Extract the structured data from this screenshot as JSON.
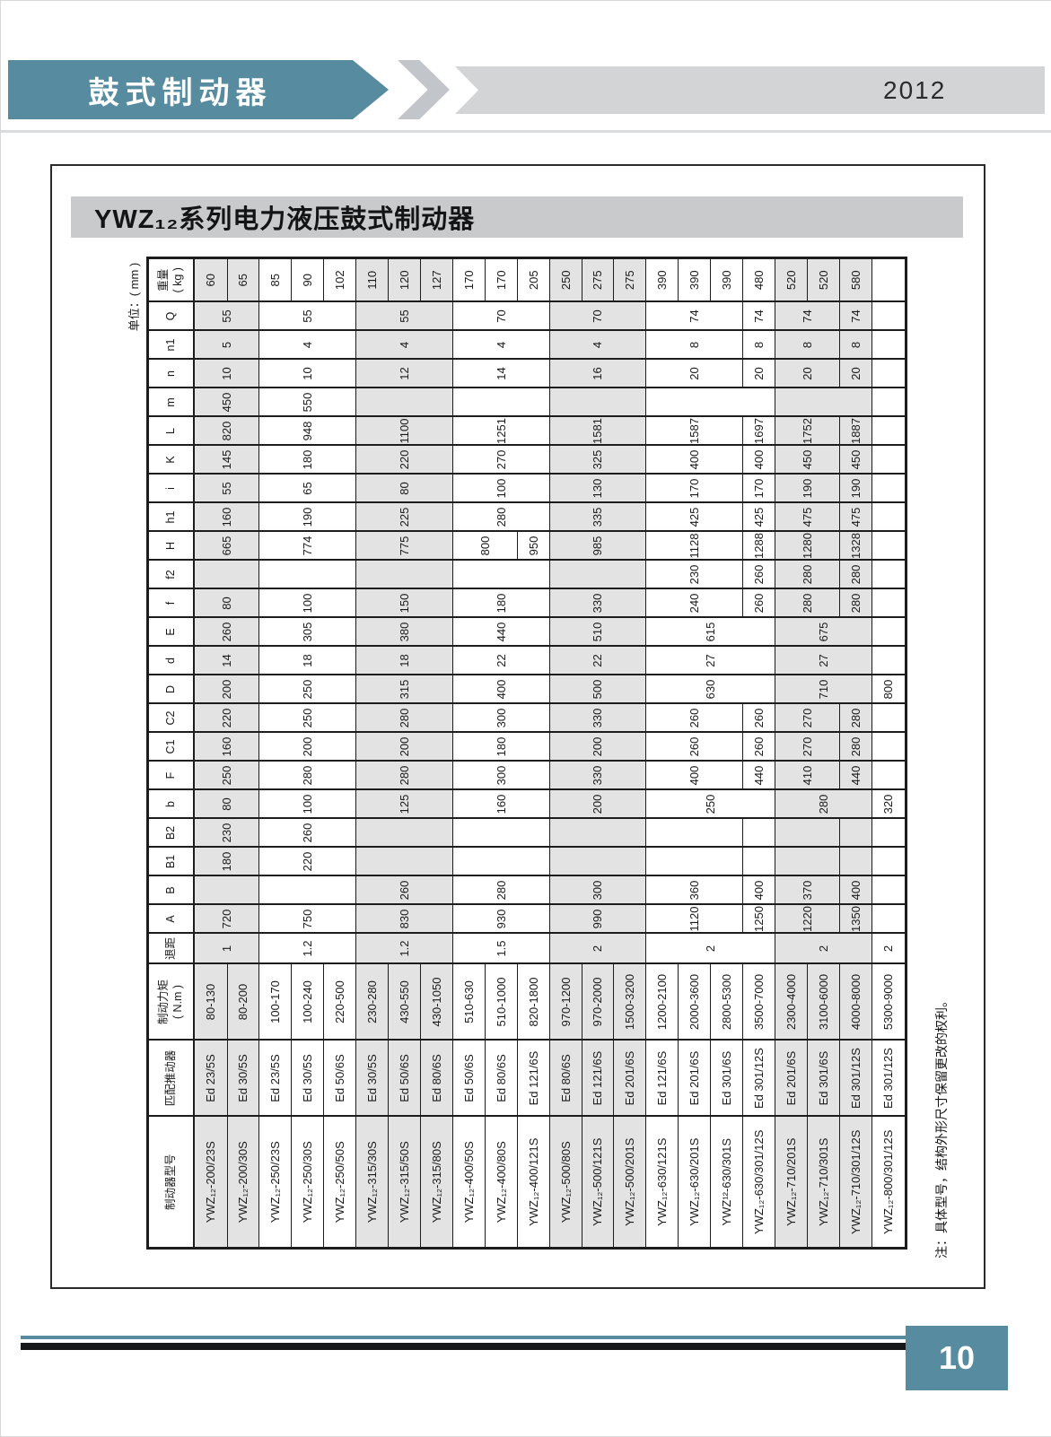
{
  "banner": {
    "title": "鼓式制动器",
    "year": "2012"
  },
  "section": {
    "title": "YWZ₁₂系列电力液压鼓式制动器"
  },
  "table": {
    "unit_label": "单位：( mm )",
    "note": "注：具体型号，结构外形尺寸保留更改的权利。",
    "headers": [
      "制动器型号",
      "匹配推动器",
      "制动力矩\n( N.m )",
      "退距",
      "A",
      "B",
      "B1",
      "B2",
      "b",
      "F",
      "C1",
      "C2",
      "D",
      "d",
      "E",
      "f",
      "f2",
      "H",
      "h1",
      "i",
      "K",
      "L",
      "m",
      "n",
      "n1",
      "Q",
      "重量\n( kg )"
    ],
    "row_groups": [
      0,
      0,
      1,
      1,
      1,
      2,
      2,
      2,
      3,
      3,
      3,
      4,
      4,
      4,
      5,
      5,
      5,
      5,
      6,
      6,
      6,
      7
    ],
    "rows": [
      [
        "YWZ₁₂-200/23S",
        "Ed 23/5S",
        "80-130",
        [
          "1",
          2
        ],
        [
          "720",
          2
        ],
        [
          "",
          2
        ],
        [
          "180",
          2
        ],
        [
          "230",
          2
        ],
        [
          "80",
          2
        ],
        [
          "250",
          2
        ],
        [
          "160",
          2
        ],
        [
          "220",
          2
        ],
        [
          "200",
          2
        ],
        [
          "14",
          2
        ],
        [
          "260",
          2
        ],
        [
          "80",
          2
        ],
        [
          "",
          2
        ],
        [
          "665",
          2
        ],
        [
          "160",
          2
        ],
        [
          "55",
          2
        ],
        [
          "145",
          2
        ],
        [
          "820",
          2
        ],
        [
          "450",
          2
        ],
        [
          "10",
          2
        ],
        [
          "5",
          2
        ],
        [
          "55",
          2
        ],
        "60"
      ],
      [
        "YWZ₁₂-200/30S",
        "Ed 30/5S",
        "80-200",
        0,
        0,
        0,
        0,
        0,
        0,
        0,
        0,
        0,
        0,
        0,
        0,
        0,
        0,
        0,
        0,
        0,
        0,
        0,
        0,
        0,
        0,
        0,
        "65"
      ],
      [
        "YWZ₁₂-250/23S",
        "Ed 23/5S",
        "100-170",
        [
          "1.2",
          3
        ],
        [
          "750",
          3
        ],
        [
          "",
          3
        ],
        [
          "220",
          3
        ],
        [
          "260",
          3
        ],
        [
          "100",
          3
        ],
        [
          "280",
          3
        ],
        [
          "200",
          3
        ],
        [
          "250",
          3
        ],
        [
          "250",
          3
        ],
        [
          "18",
          3
        ],
        [
          "305",
          3
        ],
        [
          "100",
          3
        ],
        [
          "",
          3
        ],
        [
          "774",
          3
        ],
        [
          "190",
          3
        ],
        [
          "65",
          3
        ],
        [
          "180",
          3
        ],
        [
          "948",
          3
        ],
        [
          "550",
          3
        ],
        [
          "10",
          3
        ],
        [
          "4",
          3
        ],
        [
          "55",
          3
        ],
        "85"
      ],
      [
        "YWZ₁₂-250/30S",
        "Ed 30/5S",
        "100-240",
        0,
        0,
        0,
        0,
        0,
        0,
        0,
        0,
        0,
        0,
        0,
        0,
        0,
        0,
        0,
        0,
        0,
        0,
        0,
        0,
        0,
        0,
        0,
        "90"
      ],
      [
        "YWZ₁₂-250/50S",
        "Ed 50/6S",
        "220-500",
        0,
        0,
        0,
        0,
        0,
        0,
        0,
        0,
        0,
        0,
        0,
        0,
        0,
        0,
        0,
        0,
        0,
        0,
        0,
        0,
        0,
        0,
        0,
        "102"
      ],
      [
        "YWZ₁₂-315/30S",
        "Ed 30/5S",
        "230-280",
        [
          "1.2",
          3
        ],
        [
          "830",
          3
        ],
        [
          "260",
          3
        ],
        [
          "",
          3
        ],
        [
          "",
          3
        ],
        [
          "125",
          3
        ],
        [
          "280",
          3
        ],
        [
          "200",
          3
        ],
        [
          "280",
          3
        ],
        [
          "315",
          3
        ],
        [
          "18",
          3
        ],
        [
          "380",
          3
        ],
        [
          "150",
          3
        ],
        [
          "",
          3
        ],
        [
          "775",
          3
        ],
        [
          "225",
          3
        ],
        [
          "80",
          3
        ],
        [
          "220",
          3
        ],
        [
          "1100",
          3
        ],
        [
          "",
          3
        ],
        [
          "12",
          3
        ],
        [
          "4",
          3
        ],
        [
          "55",
          3
        ],
        "110"
      ],
      [
        "YWZ₁₂-315/50S",
        "Ed 50/6S",
        "430-550",
        0,
        0,
        0,
        0,
        0,
        0,
        0,
        0,
        0,
        0,
        0,
        0,
        0,
        0,
        0,
        0,
        0,
        0,
        0,
        0,
        0,
        0,
        0,
        "120"
      ],
      [
        "YWZ₁₂-315/80S",
        "Ed 80/6S",
        "430-1050",
        0,
        0,
        0,
        0,
        0,
        0,
        0,
        0,
        0,
        0,
        0,
        0,
        0,
        0,
        0,
        0,
        0,
        0,
        0,
        0,
        0,
        0,
        0,
        "127"
      ],
      [
        "YWZ₁₂-400/50S",
        "Ed 50/6S",
        "510-630",
        [
          "1.5",
          3
        ],
        [
          "930",
          3
        ],
        [
          "280",
          3
        ],
        [
          "",
          3
        ],
        [
          "",
          3
        ],
        [
          "160",
          3
        ],
        [
          "300",
          3
        ],
        [
          "180",
          3
        ],
        [
          "300",
          3
        ],
        [
          "400",
          3
        ],
        [
          "22",
          3
        ],
        [
          "440",
          3
        ],
        [
          "180",
          3
        ],
        [
          "",
          3
        ],
        [
          "800",
          2
        ],
        [
          "280",
          3
        ],
        [
          "100",
          3
        ],
        [
          "270",
          3
        ],
        [
          "1251",
          3
        ],
        [
          "",
          3
        ],
        [
          "14",
          3
        ],
        [
          "4",
          3
        ],
        [
          "70",
          3
        ],
        "170"
      ],
      [
        "YWZ₁₂-400/80S",
        "Ed 80/6S",
        "510-1000",
        0,
        0,
        0,
        0,
        0,
        0,
        0,
        0,
        0,
        0,
        0,
        0,
        0,
        0,
        0,
        0,
        0,
        0,
        0,
        0,
        0,
        0,
        0,
        "170"
      ],
      [
        "YWZ₁₂-400/121S",
        "Ed 121/6S",
        "820-1800",
        0,
        0,
        0,
        0,
        0,
        0,
        0,
        0,
        0,
        0,
        0,
        0,
        0,
        0,
        "950",
        0,
        0,
        0,
        0,
        0,
        0,
        0,
        0,
        "205"
      ],
      [
        "YWZ₁₂-500/80S",
        "Ed 80/6S",
        "970-1200",
        [
          "2",
          3
        ],
        [
          "990",
          3
        ],
        [
          "300",
          3
        ],
        [
          "",
          3
        ],
        [
          "",
          3
        ],
        [
          "200",
          3
        ],
        [
          "330",
          3
        ],
        [
          "200",
          3
        ],
        [
          "330",
          3
        ],
        [
          "500",
          3
        ],
        [
          "22",
          3
        ],
        [
          "510",
          3
        ],
        [
          "330",
          3
        ],
        [
          "",
          3
        ],
        [
          "985",
          3
        ],
        [
          "335",
          3
        ],
        [
          "130",
          3
        ],
        [
          "325",
          3
        ],
        [
          "1581",
          3
        ],
        [
          "",
          3
        ],
        [
          "16",
          3
        ],
        [
          "4",
          3
        ],
        [
          "70",
          3
        ],
        "250"
      ],
      [
        "YWZ₁₂-500/121S",
        "Ed 121/6S",
        "970-2000",
        0,
        0,
        0,
        0,
        0,
        0,
        0,
        0,
        0,
        0,
        0,
        0,
        0,
        0,
        0,
        0,
        0,
        0,
        0,
        0,
        0,
        0,
        0,
        "275"
      ],
      [
        "YWZ₁₂-500/201S",
        "Ed 201/6S",
        "1500-3200",
        0,
        0,
        0,
        0,
        0,
        0,
        0,
        0,
        0,
        0,
        0,
        0,
        0,
        0,
        0,
        0,
        0,
        0,
        0,
        0,
        0,
        0,
        0,
        "275"
      ],
      [
        "YWZ₁₂-630/121S",
        "Ed 121/6S",
        "1200-2100",
        [
          "2",
          4
        ],
        [
          "1120",
          3
        ],
        [
          "360",
          3
        ],
        [
          "",
          3
        ],
        [
          "",
          3
        ],
        [
          "250",
          4
        ],
        [
          "400",
          3
        ],
        [
          "260",
          3
        ],
        [
          "260",
          3
        ],
        [
          "630",
          4
        ],
        [
          "27",
          4
        ],
        [
          "615",
          4
        ],
        [
          "240",
          3
        ],
        [
          "230",
          3
        ],
        [
          "1128",
          3
        ],
        [
          "425",
          3
        ],
        [
          "170",
          3
        ],
        [
          "400",
          3
        ],
        [
          "1587",
          3
        ],
        [
          "",
          4
        ],
        [
          "20",
          3
        ],
        [
          "8",
          3
        ],
        [
          "74",
          3
        ],
        "390"
      ],
      [
        "YWZ₁₂-630/201S",
        "Ed 201/6S",
        "2000-3600",
        0,
        0,
        0,
        0,
        0,
        0,
        0,
        0,
        0,
        0,
        0,
        0,
        0,
        0,
        0,
        0,
        0,
        0,
        0,
        0,
        0,
        0,
        0,
        "390"
      ],
      [
        "YWZ¹²-630/301S",
        "Ed 301/6S",
        "2800-5300",
        0,
        0,
        0,
        0,
        0,
        0,
        0,
        0,
        0,
        0,
        0,
        0,
        0,
        0,
        0,
        0,
        0,
        0,
        0,
        0,
        0,
        0,
        0,
        "390"
      ],
      [
        "YWZ₁₂-630/301/12S",
        "Ed 301/12S",
        "3500-7000",
        0,
        "1250",
        "400",
        "",
        "",
        0,
        "440",
        "260",
        "260",
        0,
        0,
        0,
        "260",
        "260",
        "1288",
        "425",
        "170",
        "400",
        "1697",
        0,
        "20",
        "8",
        "74",
        "480"
      ],
      [
        "YWZ₁₂-710/201S",
        "Ed 201/6S",
        "2300-4000",
        [
          "2",
          3
        ],
        [
          "1220",
          2
        ],
        [
          "370",
          2
        ],
        [
          "",
          2
        ],
        [
          "",
          2
        ],
        [
          "280",
          3
        ],
        [
          "410",
          2
        ],
        [
          "270",
          2
        ],
        [
          "270",
          2
        ],
        [
          "710",
          3
        ],
        [
          "27",
          3
        ],
        [
          "675",
          3
        ],
        [
          "280",
          2
        ],
        [
          "280",
          2
        ],
        [
          "1280",
          2
        ],
        [
          "475",
          2
        ],
        [
          "190",
          2
        ],
        [
          "450",
          2
        ],
        [
          "1752",
          2
        ],
        [
          "",
          3
        ],
        [
          "20",
          2
        ],
        [
          "8",
          2
        ],
        [
          "74",
          2
        ],
        "520"
      ],
      [
        "YWZ₁₂-710/301S",
        "Ed 301/6S",
        "3100-6000",
        0,
        0,
        0,
        0,
        0,
        0,
        0,
        0,
        0,
        0,
        0,
        0,
        0,
        0,
        0,
        0,
        0,
        0,
        0,
        0,
        0,
        0,
        0,
        "520"
      ],
      [
        "YWZ₁₂-710/301/12S",
        "Ed 301/12S",
        "4000-8000",
        0,
        "1350",
        "400",
        "",
        "",
        0,
        "440",
        "280",
        "280",
        0,
        0,
        0,
        "280",
        "280",
        "1328",
        "475",
        "190",
        "450",
        "1887",
        0,
        "20",
        "8",
        "74",
        "580"
      ],
      [
        "YWZ₁₂-800/301/12S",
        "Ed 301/12S",
        "5300-9000",
        "2",
        "",
        "",
        "",
        "",
        "320",
        "",
        "",
        "",
        "800",
        "",
        "",
        "",
        "",
        "",
        "",
        "",
        "",
        "",
        "",
        "",
        "",
        "",
        ""
      ]
    ]
  },
  "footer": {
    "page": "10"
  },
  "colors": {
    "accent": "#578CA0",
    "bar": "#D3D4D6",
    "title_band": "#C9CACC",
    "shade": "#E3E3E3",
    "border": "#1C1C1C"
  }
}
